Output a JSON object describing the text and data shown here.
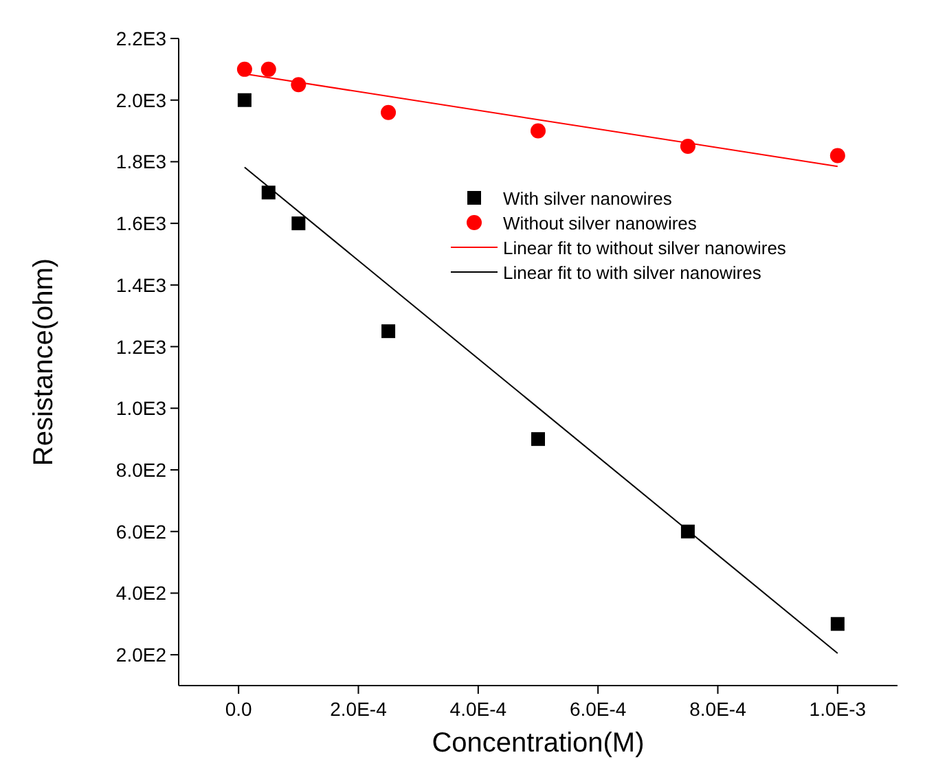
{
  "chart_data": {
    "type": "scatter",
    "xlabel": "Concentration(M)",
    "ylabel": "Resistance(ohm)",
    "xlim": [
      -0.0001,
      0.0011
    ],
    "ylim": [
      100,
      2200
    ],
    "xticks": [
      {
        "value": 0,
        "label": "0.0"
      },
      {
        "value": 0.0002,
        "label": "2.0E-4"
      },
      {
        "value": 0.0004,
        "label": "4.0E-4"
      },
      {
        "value": 0.0006,
        "label": "6.0E-4"
      },
      {
        "value": 0.0008,
        "label": "8.0E-4"
      },
      {
        "value": 0.001,
        "label": "1.0E-3"
      }
    ],
    "yticks": [
      {
        "value": 200,
        "label": "2.0E2"
      },
      {
        "value": 400,
        "label": "4.0E2"
      },
      {
        "value": 600,
        "label": "6.0E2"
      },
      {
        "value": 800,
        "label": "8.0E2"
      },
      {
        "value": 1000,
        "label": "1.0E3"
      },
      {
        "value": 1200,
        "label": "1.2E3"
      },
      {
        "value": 1400,
        "label": "1.4E3"
      },
      {
        "value": 1600,
        "label": "1.6E3"
      },
      {
        "value": 1800,
        "label": "1.8E3"
      },
      {
        "value": 2000,
        "label": "2.0E3"
      },
      {
        "value": 2200,
        "label": "2.2E3"
      }
    ],
    "grid": false,
    "legend": "top right",
    "series": [
      {
        "name": "With silver nanowires",
        "marker": "square",
        "color": "#000000",
        "x": [
          1e-05,
          5e-05,
          0.0001,
          0.00025,
          0.0005,
          0.00075,
          0.001
        ],
        "values": [
          2000,
          1700,
          1600,
          1250,
          900,
          600,
          300
        ]
      },
      {
        "name": "Without silver nanowires",
        "marker": "circle",
        "color": "#ff0000",
        "x": [
          1e-05,
          5e-05,
          0.0001,
          0.00025,
          0.0005,
          0.00075,
          0.001
        ],
        "values": [
          2100,
          2100,
          2050,
          1960,
          1900,
          1850,
          1820
        ]
      },
      {
        "name": "Linear fit to without silver nanowires",
        "type": "line",
        "color": "#ff0000",
        "x": [
          1e-05,
          0.001
        ],
        "values": [
          2085,
          1785
        ]
      },
      {
        "name": "Linear fit to with silver nanowires",
        "type": "line",
        "color": "#000000",
        "x": [
          1e-05,
          0.001
        ],
        "values": [
          1782,
          205
        ]
      }
    ]
  }
}
